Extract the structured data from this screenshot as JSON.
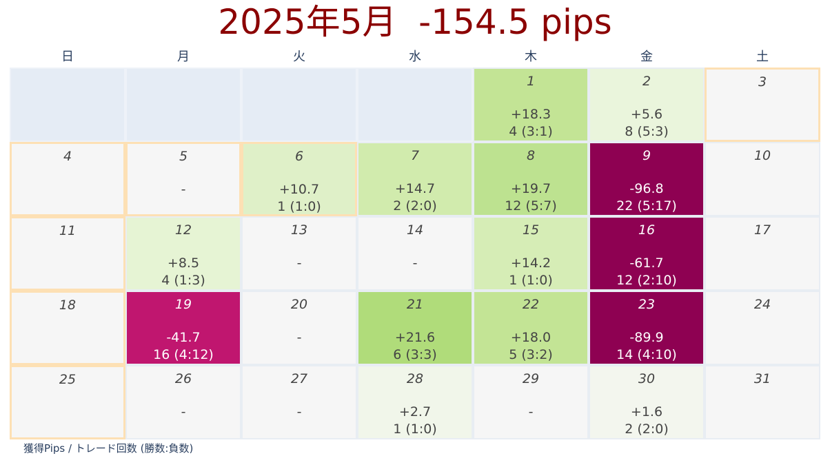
{
  "title": "2025年5月  -154.5 pips",
  "caption": "獲得Pips / トレード回数 (勝数:負数)",
  "chart_data": {
    "type": "heatmap",
    "title": "2025年5月  -154.5 pips",
    "year": 2025,
    "month": 5,
    "total_pips": -154.5,
    "weekdays": [
      "日",
      "月",
      "火",
      "水",
      "木",
      "金",
      "土"
    ],
    "first_weekday_index": 4,
    "days": [
      {
        "day": "1",
        "pips": "+18.3",
        "pips_value": 18.3,
        "trades": "4 (3:1)",
        "color": "#c3e495",
        "holiday": false
      },
      {
        "day": "2",
        "pips": "+5.6",
        "pips_value": 5.6,
        "trades": "8 (5:3)",
        "color": "#eaf5dc",
        "holiday": false
      },
      {
        "day": "3",
        "pips": "",
        "pips_value": null,
        "trades": "",
        "color": "#f6f6f6",
        "holiday": true
      },
      {
        "day": "4",
        "pips": "",
        "pips_value": null,
        "trades": "",
        "color": "#f6f6f6",
        "holiday": true
      },
      {
        "day": "5",
        "pips": "-",
        "pips_value": 0,
        "trades": "",
        "color": "#f6f6f6",
        "holiday": true
      },
      {
        "day": "6",
        "pips": "+10.7",
        "pips_value": 10.7,
        "trades": "1 (1:0)",
        "color": "#dff0c8",
        "holiday": true
      },
      {
        "day": "7",
        "pips": "+14.7",
        "pips_value": 14.7,
        "trades": "2 (2:0)",
        "color": "#d1ebad",
        "holiday": false
      },
      {
        "day": "8",
        "pips": "+19.7",
        "pips_value": 19.7,
        "trades": "12 (5:7)",
        "color": "#bde290",
        "holiday": false
      },
      {
        "day": "9",
        "pips": "-96.8",
        "pips_value": -96.8,
        "trades": "22 (5:17)",
        "color": "#8e0152",
        "holiday": false
      },
      {
        "day": "10",
        "pips": "",
        "pips_value": null,
        "trades": "",
        "color": "#f6f6f6",
        "holiday": false
      },
      {
        "day": "11",
        "pips": "",
        "pips_value": null,
        "trades": "",
        "color": "#f6f6f6",
        "holiday": true
      },
      {
        "day": "12",
        "pips": "+8.5",
        "pips_value": 8.5,
        "trades": "4 (1:3)",
        "color": "#e6f4d4",
        "holiday": false
      },
      {
        "day": "13",
        "pips": "-",
        "pips_value": 0,
        "trades": "",
        "color": "#f6f6f6",
        "holiday": false
      },
      {
        "day": "14",
        "pips": "-",
        "pips_value": 0,
        "trades": "",
        "color": "#f6f6f6",
        "holiday": false
      },
      {
        "day": "15",
        "pips": "+14.2",
        "pips_value": 14.2,
        "trades": "1 (1:0)",
        "color": "#d6edb6",
        "holiday": false
      },
      {
        "day": "16",
        "pips": "-61.7",
        "pips_value": -61.7,
        "trades": "12 (2:10)",
        "color": "#8e0152",
        "holiday": false
      },
      {
        "day": "17",
        "pips": "",
        "pips_value": null,
        "trades": "",
        "color": "#f6f6f6",
        "holiday": false
      },
      {
        "day": "18",
        "pips": "",
        "pips_value": null,
        "trades": "",
        "color": "#f6f6f6",
        "holiday": true
      },
      {
        "day": "19",
        "pips": "-41.7",
        "pips_value": -41.7,
        "trades": "16 (4:12)",
        "color": "#c0166f",
        "holiday": false
      },
      {
        "day": "20",
        "pips": "-",
        "pips_value": 0,
        "trades": "",
        "color": "#f6f6f6",
        "holiday": false
      },
      {
        "day": "21",
        "pips": "+21.6",
        "pips_value": 21.6,
        "trades": "6 (3:3)",
        "color": "#b0dc7a",
        "holiday": false
      },
      {
        "day": "22",
        "pips": "+18.0",
        "pips_value": 18.0,
        "trades": "5 (3:2)",
        "color": "#c3e495",
        "holiday": false
      },
      {
        "day": "23",
        "pips": "-89.9",
        "pips_value": -89.9,
        "trades": "14 (4:10)",
        "color": "#8e0152",
        "holiday": false
      },
      {
        "day": "24",
        "pips": "",
        "pips_value": null,
        "trades": "",
        "color": "#f6f6f6",
        "holiday": false
      },
      {
        "day": "25",
        "pips": "",
        "pips_value": null,
        "trades": "",
        "color": "#f6f6f6",
        "holiday": true
      },
      {
        "day": "26",
        "pips": "-",
        "pips_value": 0,
        "trades": "",
        "color": "#f6f6f6",
        "holiday": false
      },
      {
        "day": "27",
        "pips": "-",
        "pips_value": 0,
        "trades": "",
        "color": "#f6f6f6",
        "holiday": false
      },
      {
        "day": "28",
        "pips": "+2.7",
        "pips_value": 2.7,
        "trades": "1 (1:0)",
        "color": "#f1f6ea",
        "holiday": false
      },
      {
        "day": "29",
        "pips": "-",
        "pips_value": 0,
        "trades": "",
        "color": "#f6f6f6",
        "holiday": false
      },
      {
        "day": "30",
        "pips": "+1.6",
        "pips_value": 1.6,
        "trades": "2 (2:0)",
        "color": "#f3f6ee",
        "holiday": false
      },
      {
        "day": "31",
        "pips": "",
        "pips_value": null,
        "trades": "",
        "color": "#f6f6f6",
        "holiday": false
      }
    ],
    "colors": {
      "empty_cell": "#e5ecf5",
      "title": "#8b0000",
      "holiday_border": "#fde0b4"
    }
  }
}
